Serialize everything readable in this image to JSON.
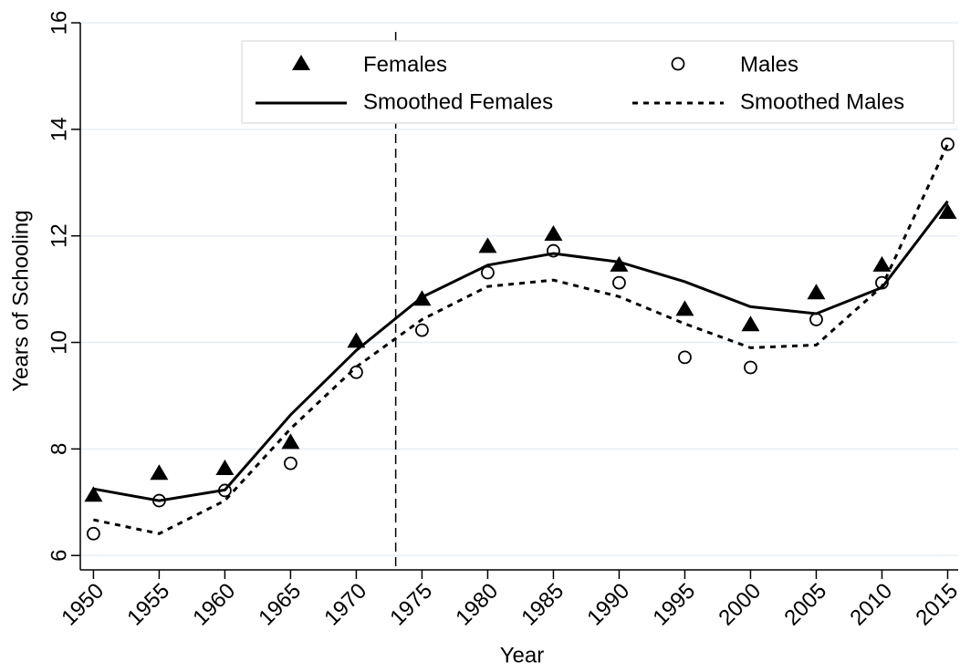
{
  "chart_data": {
    "type": "line",
    "x_label": "Year",
    "y_label": "Years of Schooling",
    "x": [
      1950,
      1955,
      1960,
      1965,
      1970,
      1975,
      1980,
      1985,
      1990,
      1995,
      2000,
      2005,
      2010,
      2015
    ],
    "series": [
      {
        "name": "Females",
        "color": "#000000",
        "marker": "triangle",
        "line": "none",
        "values": [
          7.13,
          7.54,
          7.63,
          8.12,
          10.02,
          10.81,
          11.8,
          12.03,
          11.45,
          10.62,
          10.33,
          10.93,
          11.45,
          12.44
        ]
      },
      {
        "name": "Males",
        "color": "#000000",
        "marker": "circle",
        "line": "none",
        "values": [
          6.41,
          7.03,
          7.22,
          7.73,
          9.44,
          10.23,
          11.31,
          11.72,
          11.12,
          9.72,
          9.53,
          10.43,
          11.12,
          13.72
        ]
      },
      {
        "name": "Smoothed Females",
        "color": "#000000",
        "marker": "none",
        "line": "solid",
        "values": [
          7.25,
          7.03,
          7.23,
          8.64,
          9.85,
          10.85,
          11.45,
          11.67,
          11.51,
          11.14,
          10.67,
          10.54,
          11.03,
          12.65
        ]
      },
      {
        "name": "Smoothed Males",
        "color": "#000000",
        "marker": "none",
        "line": "dotted",
        "values": [
          6.67,
          6.41,
          7.03,
          8.38,
          9.54,
          10.43,
          11.05,
          11.17,
          10.86,
          10.35,
          9.9,
          9.95,
          11.05,
          13.72
        ]
      }
    ],
    "vline": 1973,
    "xlim": [
      1949,
      2015.8
    ],
    "ylim": [
      5.73,
      16
    ],
    "xticks": [
      1950,
      1955,
      1960,
      1965,
      1970,
      1975,
      1980,
      1985,
      1990,
      1995,
      2000,
      2005,
      2010,
      2015
    ],
    "yticks": [
      6,
      8,
      10,
      12,
      14,
      16
    ],
    "grid": true,
    "legend": "top"
  }
}
